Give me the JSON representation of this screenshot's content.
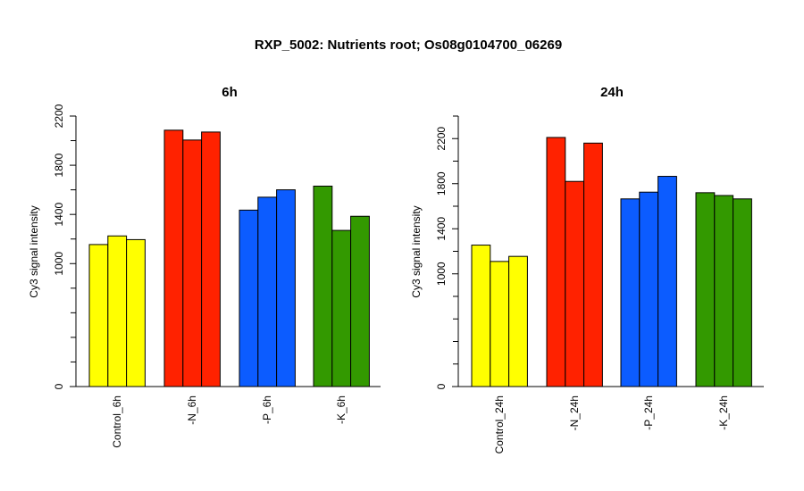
{
  "title": "RXP_5002: Nutrients root; Os08g0104700_06269",
  "chart_data": [
    {
      "type": "bar",
      "title": "6h",
      "xlabel": "",
      "ylabel": "Cy3 signal intensity",
      "ylim": [
        0,
        2200
      ],
      "yticks": [
        0,
        1000,
        1400,
        1800,
        2200
      ],
      "minor_yticks": [
        200,
        400,
        600,
        800,
        1200,
        1600,
        2000
      ],
      "categories": [
        "Control_6h",
        "-N_6h",
        "-P_6h",
        "-K_6h"
      ],
      "bar_colors": [
        "#ffff00",
        "#ff2200",
        "#0c5cff",
        "#339900"
      ],
      "groups": [
        {
          "label": "Control_6h",
          "values": [
            1155,
            1225,
            1195
          ]
        },
        {
          "label": "-N_6h",
          "values": [
            2085,
            2005,
            2070
          ]
        },
        {
          "label": "-P_6h",
          "values": [
            1435,
            1540,
            1600
          ]
        },
        {
          "label": "-K_6h",
          "values": [
            1630,
            1270,
            1385
          ]
        }
      ]
    },
    {
      "type": "bar",
      "title": "24h",
      "xlabel": "",
      "ylabel": "Cy3 signal intensity",
      "ylim": [
        0,
        2400
      ],
      "yticks": [
        0,
        1000,
        1400,
        1800,
        2200
      ],
      "minor_yticks": [
        200,
        400,
        600,
        800,
        1200,
        1600,
        2000,
        2400
      ],
      "categories": [
        "Control_24h",
        "-N_24h",
        "-P_24h",
        "-K_24h"
      ],
      "bar_colors": [
        "#ffff00",
        "#ff2200",
        "#0c5cff",
        "#339900"
      ],
      "groups": [
        {
          "label": "Control_24h",
          "values": [
            1255,
            1110,
            1155
          ]
        },
        {
          "label": "-N_24h",
          "values": [
            2210,
            1820,
            2160
          ]
        },
        {
          "label": "-P_24h",
          "values": [
            1665,
            1725,
            1865
          ]
        },
        {
          "label": "-K_24h",
          "values": [
            1720,
            1695,
            1665
          ]
        }
      ]
    }
  ]
}
